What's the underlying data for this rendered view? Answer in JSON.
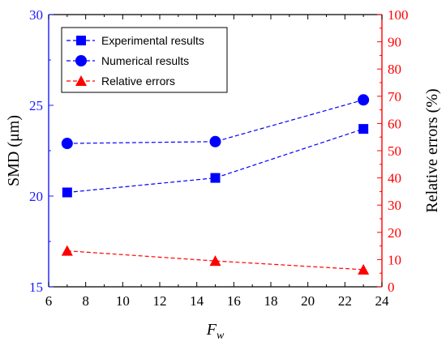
{
  "chart_data": {
    "type": "line",
    "xlabel": "F",
    "xlabel_sub": "w",
    "ylabel_left": "SMD (μm)",
    "ylabel_right": "Relative errors (%)",
    "xlim": [
      6,
      24
    ],
    "ylim_left": [
      15,
      30
    ],
    "ylim_right": [
      0,
      100
    ],
    "x_ticks": [
      "6",
      "8",
      "10",
      "12",
      "14",
      "16",
      "18",
      "20",
      "22",
      "24"
    ],
    "y_left_ticks": [
      "15",
      "20",
      "25",
      "30"
    ],
    "y_right_ticks": [
      "0",
      "10",
      "20",
      "30",
      "40",
      "50",
      "60",
      "70",
      "80",
      "90",
      "100"
    ],
    "grid": false,
    "legend_position": "top-left",
    "colors": {
      "left_axis": "#1a1aff",
      "right_axis": "#ff0000"
    },
    "series": [
      {
        "name": "Experimental results",
        "axis": "left",
        "marker": "square",
        "color": "#0000ff",
        "x": [
          7,
          15,
          23
        ],
        "values": [
          20.2,
          21.0,
          23.7
        ]
      },
      {
        "name": "Numerical results",
        "axis": "left",
        "marker": "circle",
        "color": "#0000ff",
        "x": [
          7,
          15,
          23
        ],
        "values": [
          22.9,
          23.0,
          25.3
        ]
      },
      {
        "name": "Relative errors",
        "axis": "right",
        "marker": "triangle",
        "color": "#ff0000",
        "x": [
          7,
          15,
          23
        ],
        "values": [
          13.2,
          9.5,
          6.3
        ]
      }
    ]
  }
}
